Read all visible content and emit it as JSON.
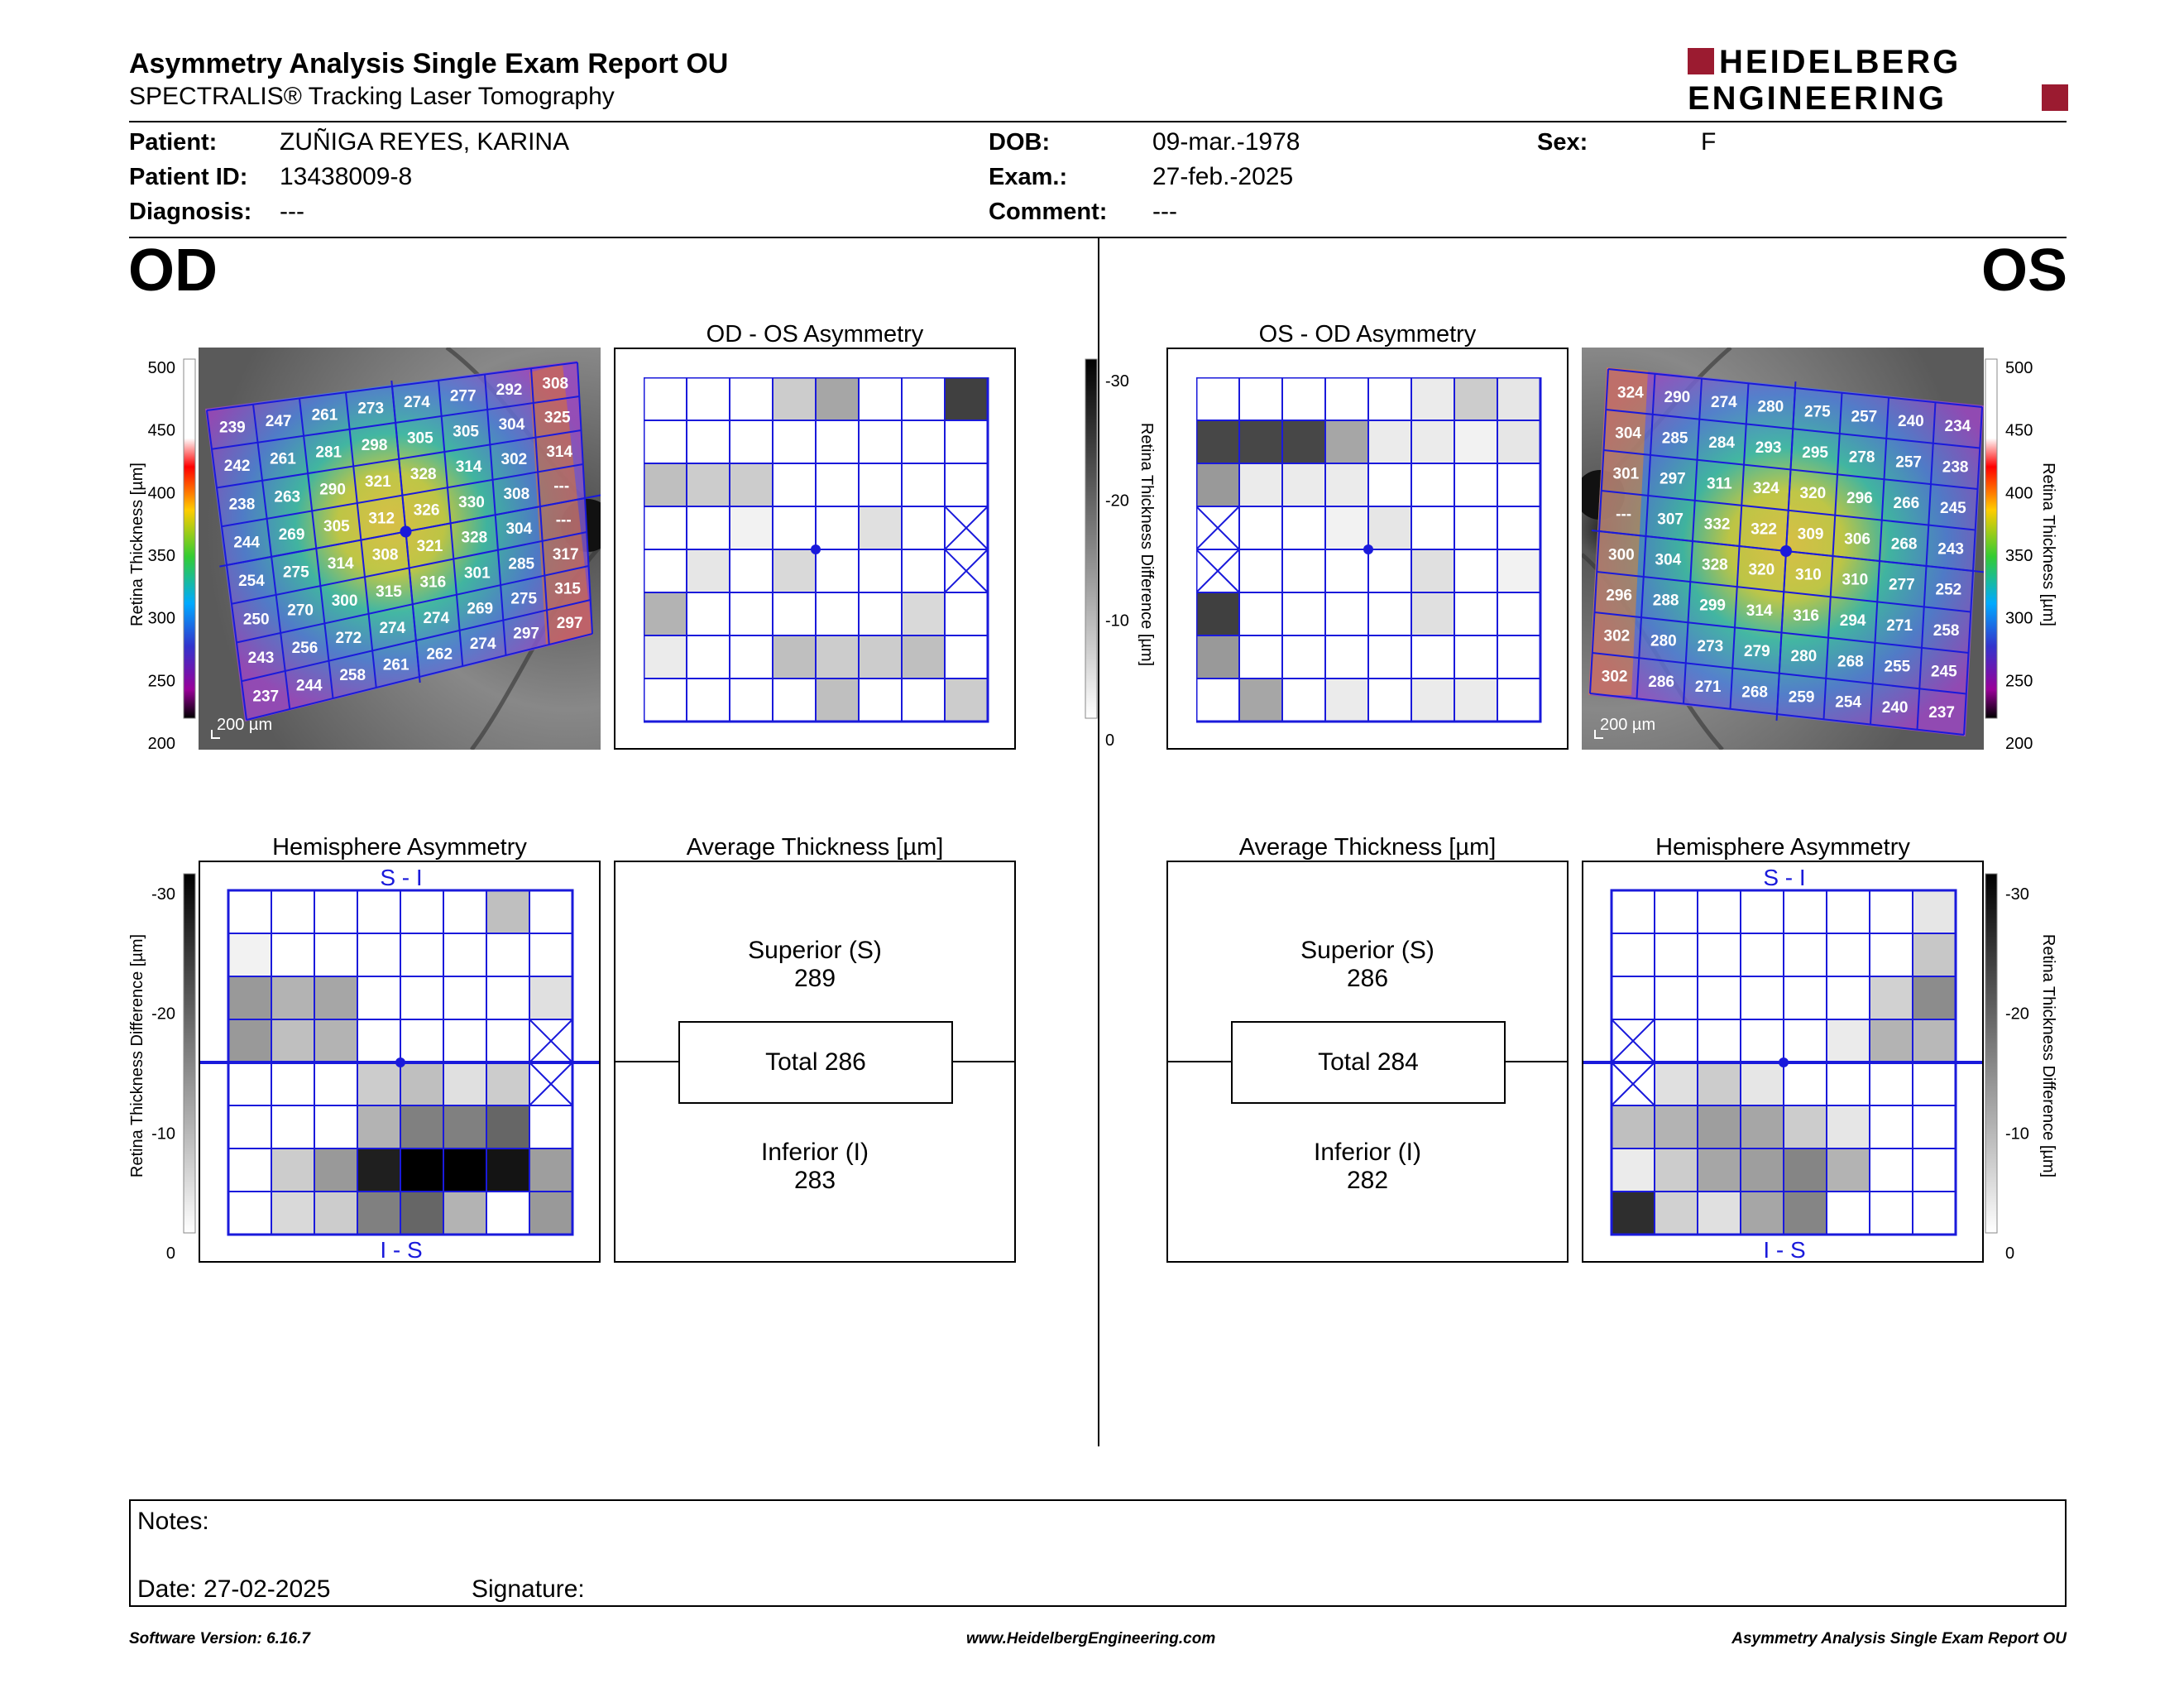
{
  "header": {
    "title": "Asymmetry Analysis Single Exam Report OU",
    "subtitle": "SPECTRALIS® Tracking Laser Tomography",
    "brand_line1": "HEIDELBERG",
    "brand_line2": "ENGINEERING",
    "brand_color": "#9b1b30"
  },
  "patient": {
    "patient_label": "Patient:",
    "patient_value": "ZUÑIGA REYES, KARINA",
    "id_label": "Patient ID:",
    "id_value": "13438009-8",
    "diagnosis_label": "Diagnosis:",
    "diagnosis_value": "---",
    "dob_label": "DOB:",
    "dob_value": "09-mar.-1978",
    "exam_label": "Exam.:",
    "exam_value": "27-feb.-2025",
    "comment_label": "Comment:",
    "comment_value": "---",
    "sex_label": "Sex:",
    "sex_value": "F"
  },
  "od": {
    "eye_label": "OD",
    "asym_title": "OD - OS Asymmetry",
    "hemi_title": "Hemisphere Asymmetry",
    "avg_title": "Average Thickness [µm]",
    "superior_label": "Superior (S)",
    "superior_value": "289",
    "total_label": "Total 286",
    "inferior_label": "Inferior (I)",
    "inferior_value": "283",
    "scale_label": "200 µm",
    "hemi_top_label": "S - I",
    "hemi_bottom_label": "I - S",
    "thickness_grid": [
      [
        "239",
        "247",
        "261",
        "273",
        "274",
        "277",
        "292",
        "308"
      ],
      [
        "242",
        "261",
        "281",
        "298",
        "305",
        "305",
        "304",
        "325"
      ],
      [
        "238",
        "263",
        "290",
        "321",
        "328",
        "314",
        "302",
        "314"
      ],
      [
        "244",
        "269",
        "305",
        "312",
        "326",
        "330",
        "308",
        "---"
      ],
      [
        "254",
        "275",
        "314",
        "308",
        "321",
        "328",
        "304",
        "---"
      ],
      [
        "250",
        "270",
        "300",
        "315",
        "316",
        "301",
        "285",
        "317"
      ],
      [
        "243",
        "256",
        "272",
        "274",
        "274",
        "269",
        "275",
        "315"
      ],
      [
        "237",
        "244",
        "258",
        "261",
        "262",
        "274",
        "297",
        "297"
      ]
    ],
    "asym_grid": [
      [
        0,
        0,
        0,
        0.2,
        0.35,
        0,
        0,
        0.75
      ],
      [
        0,
        0,
        0,
        0,
        0,
        0,
        0,
        0
      ],
      [
        0.25,
        0.2,
        0.2,
        0,
        0,
        0,
        0,
        0
      ],
      [
        0,
        0,
        0.05,
        0,
        0,
        0.12,
        0,
        "x"
      ],
      [
        0,
        0.1,
        0,
        0.15,
        0,
        0,
        0,
        "x"
      ],
      [
        0.3,
        0,
        0,
        0,
        0,
        0,
        0.15,
        0
      ],
      [
        0.08,
        0,
        0,
        0.25,
        0.2,
        0.2,
        0.25,
        0
      ],
      [
        0,
        0,
        0,
        0,
        0.25,
        0,
        0,
        0.2
      ]
    ],
    "hemi_grid": [
      [
        0,
        0,
        0,
        0,
        0,
        0,
        0.25,
        0
      ],
      [
        0.05,
        0,
        0,
        0,
        0,
        0,
        0,
        0
      ],
      [
        0.4,
        0.3,
        0.35,
        0,
        0,
        0,
        0,
        0.12
      ],
      [
        0.4,
        0.25,
        0.3,
        0,
        0,
        0,
        0,
        "x"
      ],
      [
        0,
        0,
        0,
        0.2,
        0.25,
        0.12,
        0.2,
        "x"
      ],
      [
        0,
        0,
        0,
        0.3,
        0.5,
        0.5,
        0.6,
        0
      ],
      [
        0,
        0.2,
        0.4,
        0.88,
        1,
        1,
        0.92,
        0.38
      ],
      [
        0,
        0.15,
        0.2,
        0.5,
        0.6,
        0.3,
        0,
        0.4
      ]
    ]
  },
  "os": {
    "eye_label": "OS",
    "asym_title": "OS - OD Asymmetry",
    "hemi_title": "Hemisphere Asymmetry",
    "avg_title": "Average Thickness [µm]",
    "superior_label": "Superior (S)",
    "superior_value": "286",
    "total_label": "Total 284",
    "inferior_label": "Inferior (I)",
    "inferior_value": "282",
    "scale_label": "200 µm",
    "hemi_top_label": "S - I",
    "hemi_bottom_label": "I - S",
    "thickness_grid": [
      [
        "324",
        "290",
        "274",
        "280",
        "275",
        "257",
        "240",
        "234"
      ],
      [
        "304",
        "285",
        "284",
        "293",
        "295",
        "278",
        "257",
        "238"
      ],
      [
        "301",
        "297",
        "311",
        "324",
        "320",
        "296",
        "266",
        "245"
      ],
      [
        "---",
        "307",
        "332",
        "322",
        "309",
        "306",
        "268",
        "243"
      ],
      [
        "300",
        "304",
        "328",
        "320",
        "310",
        "310",
        "277",
        "252"
      ],
      [
        "296",
        "288",
        "299",
        "314",
        "316",
        "294",
        "271",
        "258"
      ],
      [
        "302",
        "280",
        "273",
        "279",
        "280",
        "268",
        "255",
        "245"
      ],
      [
        "302",
        "286",
        "271",
        "268",
        "259",
        "254",
        "240",
        "237"
      ]
    ],
    "asym_grid": [
      [
        0,
        0,
        0,
        0,
        0,
        0.08,
        0.2,
        0.1
      ],
      [
        0.72,
        0.72,
        0.72,
        0.35,
        0.08,
        0.08,
        0.05,
        0.1
      ],
      [
        0.4,
        0.08,
        0.08,
        0.08,
        0,
        0,
        0,
        0
      ],
      [
        "x",
        0,
        0,
        0.05,
        0.1,
        0,
        0,
        0
      ],
      [
        "x",
        0,
        0,
        0,
        0,
        0.12,
        0,
        0.05
      ],
      [
        0.75,
        0,
        0,
        0,
        0,
        0.12,
        0,
        0
      ],
      [
        0.4,
        0,
        0,
        0,
        0,
        0,
        0,
        0
      ],
      [
        0,
        0.35,
        0,
        0.08,
        0,
        0.08,
        0.08,
        0
      ]
    ],
    "hemi_grid": [
      [
        0,
        0,
        0,
        0,
        0,
        0,
        0,
        0.1
      ],
      [
        0,
        0,
        0,
        0,
        0,
        0,
        0,
        0.22
      ],
      [
        0,
        0,
        0,
        0,
        0,
        0,
        0.18,
        0.45
      ],
      [
        "x",
        0,
        0,
        0,
        0,
        0.08,
        0.3,
        0.28
      ],
      [
        "x",
        0.12,
        0.2,
        0.1,
        0,
        0,
        0,
        0
      ],
      [
        0.25,
        0.3,
        0.38,
        0.35,
        0.2,
        0.1,
        0,
        0
      ],
      [
        0.08,
        0.2,
        0.35,
        0.38,
        0.48,
        0.3,
        0,
        0
      ],
      [
        0.82,
        0.18,
        0.12,
        0.35,
        0.48,
        0,
        0,
        0
      ]
    ]
  },
  "thickness_scale": {
    "label": "Retina Thickness [µm]",
    "ticks": [
      "500",
      "450",
      "400",
      "350",
      "300",
      "250",
      "200"
    ]
  },
  "difference_scale": {
    "label": "Retina Thickness Difference [µm]",
    "ticks": [
      "-30",
      "-20",
      "-10",
      "0"
    ]
  },
  "notes": {
    "notes_label": "Notes:",
    "date_label": "Date: 27-02-2025",
    "signature_label": "Signature:"
  },
  "footer": {
    "left": "Software Version: 6.16.7",
    "center": "www.HeidelbergEngineering.com",
    "right": "Asymmetry Analysis Single Exam Report OU"
  }
}
